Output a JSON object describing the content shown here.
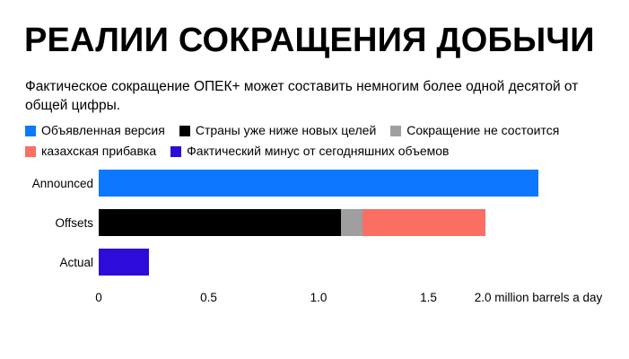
{
  "header": {
    "title": "РЕАЛИИ СОКРАЩЕНИЯ ДОБЫЧИ",
    "subtitle": "Фактическое сокращение ОПЕК+ может составить немногим более одной десятой от общей цифры."
  },
  "chart_data": {
    "type": "bar",
    "orientation": "horizontal",
    "stacked": true,
    "grid": false,
    "legend_position": "top",
    "categories": [
      "Announced",
      "Offsets",
      "Actual"
    ],
    "series": [
      {
        "name": "Объявленная версия",
        "color": "#0d78ff",
        "values": [
          2.0,
          0,
          0
        ]
      },
      {
        "name": "Страны уже ниже новых целей",
        "color": "#000000",
        "values": [
          0,
          1.1,
          0
        ]
      },
      {
        "name": "Сокращение не состоится",
        "color": "#9f9f9f",
        "values": [
          0,
          0.1,
          0
        ]
      },
      {
        "name": "казахская прибавка",
        "color": "#fa6e63",
        "values": [
          0,
          0.56,
          0
        ]
      },
      {
        "name": "Фактический минус от сегодняшних объемов",
        "color": "#2d0bd8",
        "values": [
          0,
          0,
          0.23
        ]
      }
    ],
    "xlabel": "",
    "ylabel": "",
    "xlim": [
      0,
      2.4
    ],
    "x_ticks": [
      0,
      0.5,
      1.0,
      1.5,
      2.0
    ],
    "x_tick_labels": [
      "0",
      "0.5",
      "1.0",
      "1.5",
      "2.0 million barrels a day"
    ],
    "x_unit": "million barrels a day"
  }
}
